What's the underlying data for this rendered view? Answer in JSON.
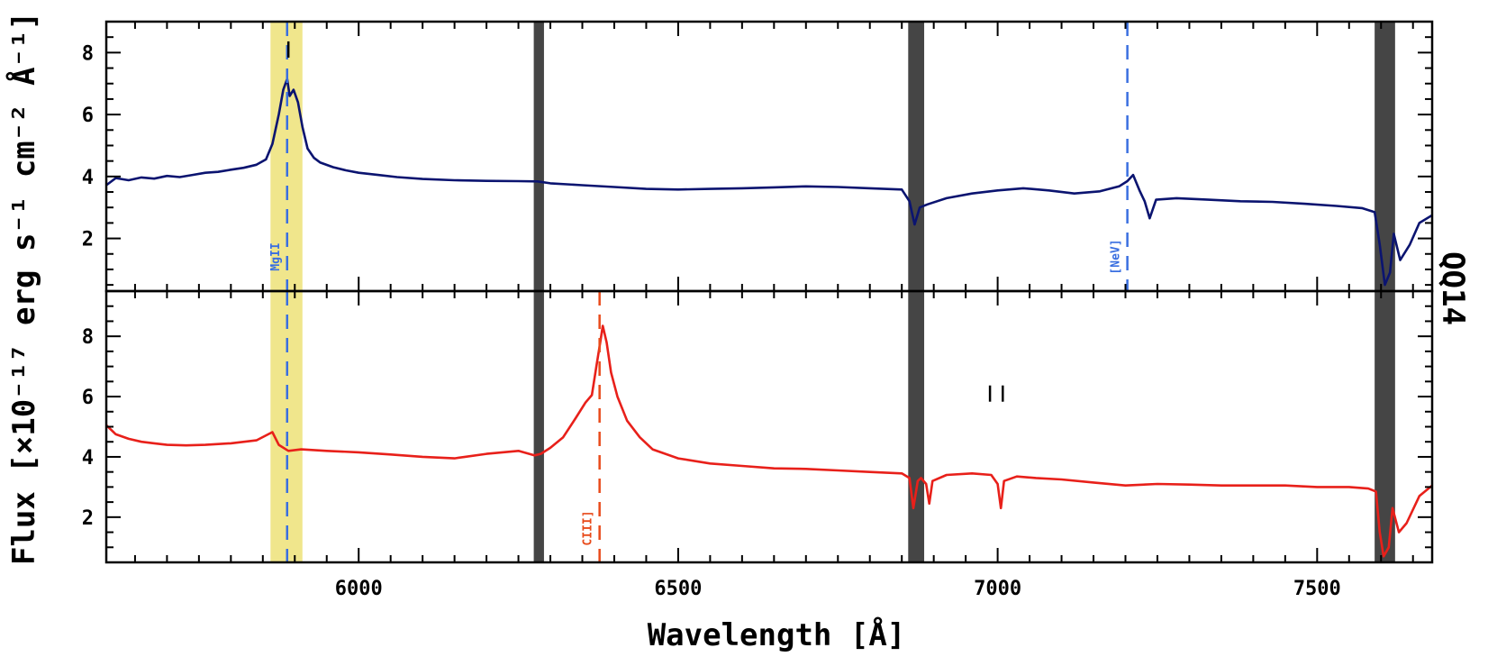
{
  "chart_data": {
    "type": "line",
    "xlabel": "Wavelength [Å]",
    "ylabel": "Flux [×10⁻¹⁷ erg s⁻¹ cm⁻² Å⁻¹]",
    "object_label": "QQ14",
    "xlim": [
      5605,
      7680
    ],
    "x_ticks": [
      6000,
      6500,
      7000,
      7500
    ],
    "x_tick_labels": [
      "6000",
      "6500",
      "7000",
      "7500"
    ],
    "shaded_bands": {
      "yellow": [
        [
          5862,
          5912
        ]
      ],
      "gray": [
        [
          6274,
          6290
        ],
        [
          6860,
          6885
        ],
        [
          7590,
          7622
        ]
      ]
    },
    "panels": [
      {
        "name": "top",
        "ylim": [
          0.3,
          9.0
        ],
        "y_ticks": [
          2,
          4,
          6,
          8
        ],
        "y_tick_labels": [
          "2",
          "4",
          "6",
          "8"
        ],
        "series": [
          {
            "color": "#0b1470",
            "points": [
              [
                5605,
                3.72
              ],
              [
                5620,
                3.95
              ],
              [
                5640,
                3.88
              ],
              [
                5660,
                3.97
              ],
              [
                5680,
                3.93
              ],
              [
                5700,
                4.02
              ],
              [
                5720,
                3.98
              ],
              [
                5740,
                4.05
              ],
              [
                5760,
                4.12
              ],
              [
                5780,
                4.15
              ],
              [
                5800,
                4.22
              ],
              [
                5820,
                4.28
              ],
              [
                5840,
                4.38
              ],
              [
                5855,
                4.55
              ],
              [
                5865,
                5.05
              ],
              [
                5875,
                6.0
              ],
              [
                5882,
                6.8
              ],
              [
                5888,
                7.15
              ],
              [
                5892,
                6.6
              ],
              [
                5898,
                6.8
              ],
              [
                5905,
                6.4
              ],
              [
                5912,
                5.6
              ],
              [
                5920,
                4.9
              ],
              [
                5930,
                4.6
              ],
              [
                5940,
                4.45
              ],
              [
                5960,
                4.3
              ],
              [
                5980,
                4.2
              ],
              [
                6000,
                4.12
              ],
              [
                6030,
                4.05
              ],
              [
                6060,
                3.98
              ],
              [
                6100,
                3.92
              ],
              [
                6150,
                3.88
              ],
              [
                6200,
                3.86
              ],
              [
                6250,
                3.85
              ],
              [
                6280,
                3.84
              ],
              [
                6300,
                3.78
              ],
              [
                6350,
                3.72
              ],
              [
                6400,
                3.66
              ],
              [
                6450,
                3.6
              ],
              [
                6500,
                3.58
              ],
              [
                6550,
                3.6
              ],
              [
                6600,
                3.62
              ],
              [
                6650,
                3.65
              ],
              [
                6700,
                3.68
              ],
              [
                6750,
                3.66
              ],
              [
                6800,
                3.62
              ],
              [
                6850,
                3.58
              ],
              [
                6862,
                3.2
              ],
              [
                6870,
                2.45
              ],
              [
                6878,
                3.0
              ],
              [
                6890,
                3.1
              ],
              [
                6920,
                3.3
              ],
              [
                6960,
                3.45
              ],
              [
                7000,
                3.55
              ],
              [
                7040,
                3.62
              ],
              [
                7080,
                3.55
              ],
              [
                7120,
                3.45
              ],
              [
                7160,
                3.52
              ],
              [
                7190,
                3.68
              ],
              [
                7203,
                3.85
              ],
              [
                7212,
                4.05
              ],
              [
                7222,
                3.55
              ],
              [
                7230,
                3.2
              ],
              [
                7238,
                2.65
              ],
              [
                7248,
                3.25
              ],
              [
                7280,
                3.3
              ],
              [
                7330,
                3.25
              ],
              [
                7380,
                3.2
              ],
              [
                7430,
                3.18
              ],
              [
                7480,
                3.12
              ],
              [
                7530,
                3.05
              ],
              [
                7570,
                2.98
              ],
              [
                7590,
                2.85
              ],
              [
                7598,
                1.8
              ],
              [
                7606,
                0.5
              ],
              [
                7614,
                0.9
              ],
              [
                7620,
                2.15
              ],
              [
                7630,
                1.3
              ],
              [
                7645,
                1.8
              ],
              [
                7660,
                2.5
              ],
              [
                7680,
                2.75
              ]
            ]
          }
        ],
        "vlines": [
          {
            "x": 5888,
            "label": "MgII",
            "color": "#3a6fe0"
          },
          {
            "x": 7203,
            "label": "[NeV]",
            "color": "#3a6fe0"
          }
        ],
        "ticks_marks": [
          {
            "x": 5890,
            "y": 8.1
          }
        ]
      },
      {
        "name": "bottom",
        "ylim": [
          0.5,
          9.5
        ],
        "y_ticks": [
          2,
          4,
          6,
          8
        ],
        "y_tick_labels": [
          "2",
          "4",
          "6",
          "8"
        ],
        "series": [
          {
            "color": "#e8201a",
            "points": [
              [
                5605,
                5.05
              ],
              [
                5620,
                4.75
              ],
              [
                5640,
                4.6
              ],
              [
                5660,
                4.5
              ],
              [
                5680,
                4.45
              ],
              [
                5700,
                4.4
              ],
              [
                5730,
                4.38
              ],
              [
                5760,
                4.4
              ],
              [
                5800,
                4.45
              ],
              [
                5840,
                4.55
              ],
              [
                5865,
                4.82
              ],
              [
                5875,
                4.4
              ],
              [
                5890,
                4.2
              ],
              [
                5910,
                4.25
              ],
              [
                5950,
                4.2
              ],
              [
                6000,
                4.15
              ],
              [
                6050,
                4.08
              ],
              [
                6100,
                4.0
              ],
              [
                6150,
                3.95
              ],
              [
                6200,
                4.1
              ],
              [
                6250,
                4.2
              ],
              [
                6275,
                4.05
              ],
              [
                6285,
                4.1
              ],
              [
                6300,
                4.3
              ],
              [
                6320,
                4.65
              ],
              [
                6340,
                5.3
              ],
              [
                6355,
                5.8
              ],
              [
                6365,
                6.05
              ],
              [
                6372,
                7.0
              ],
              [
                6378,
                7.8
              ],
              [
                6382,
                8.35
              ],
              [
                6388,
                7.8
              ],
              [
                6395,
                6.8
              ],
              [
                6405,
                6.0
              ],
              [
                6420,
                5.2
              ],
              [
                6440,
                4.65
              ],
              [
                6460,
                4.25
              ],
              [
                6500,
                3.95
              ],
              [
                6550,
                3.78
              ],
              [
                6600,
                3.7
              ],
              [
                6650,
                3.62
              ],
              [
                6700,
                3.6
              ],
              [
                6750,
                3.55
              ],
              [
                6800,
                3.5
              ],
              [
                6850,
                3.45
              ],
              [
                6862,
                3.3
              ],
              [
                6868,
                2.3
              ],
              [
                6875,
                3.2
              ],
              [
                6880,
                3.3
              ],
              [
                6888,
                3.1
              ],
              [
                6893,
                2.45
              ],
              [
                6898,
                3.2
              ],
              [
                6920,
                3.4
              ],
              [
                6960,
                3.45
              ],
              [
                6990,
                3.4
              ],
              [
                7000,
                3.1
              ],
              [
                7005,
                2.3
              ],
              [
                7010,
                3.2
              ],
              [
                7030,
                3.35
              ],
              [
                7060,
                3.3
              ],
              [
                7100,
                3.25
              ],
              [
                7150,
                3.15
              ],
              [
                7200,
                3.05
              ],
              [
                7250,
                3.1
              ],
              [
                7300,
                3.08
              ],
              [
                7350,
                3.05
              ],
              [
                7400,
                3.05
              ],
              [
                7450,
                3.05
              ],
              [
                7500,
                3.0
              ],
              [
                7550,
                3.0
              ],
              [
                7580,
                2.95
              ],
              [
                7592,
                2.85
              ],
              [
                7598,
                1.5
              ],
              [
                7604,
                0.7
              ],
              [
                7612,
                1.0
              ],
              [
                7618,
                2.3
              ],
              [
                7628,
                1.5
              ],
              [
                7640,
                1.8
              ],
              [
                7660,
                2.7
              ],
              [
                7680,
                3.05
              ]
            ]
          }
        ],
        "vlines": [
          {
            "x": 5888,
            "label": "",
            "color": "#3a6fe0"
          },
          {
            "x": 6377,
            "label": "CIII]",
            "color": "#e84a1a"
          }
        ],
        "ticks_marks": [
          {
            "x": 6988,
            "y": 6.1
          },
          {
            "x": 7008,
            "y": 6.1
          }
        ]
      }
    ]
  }
}
